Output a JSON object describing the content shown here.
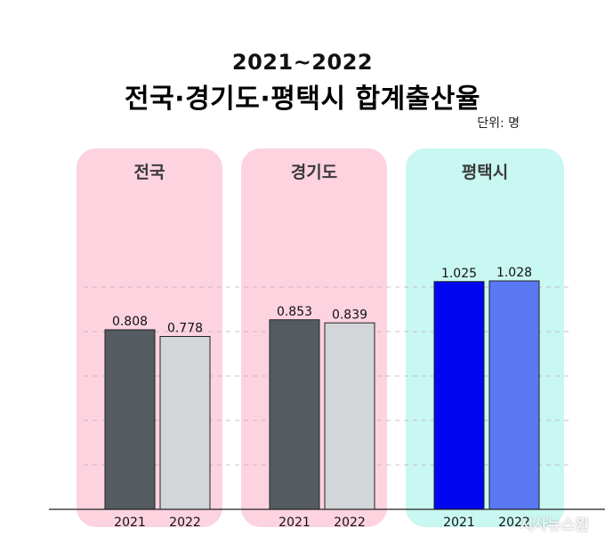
{
  "header": {
    "subtitle": "2021~2022",
    "title": "전국·경기도·평택시 합계출산율",
    "unit": "단위: 명"
  },
  "watermark": "시사뉴스원",
  "colors": {
    "panel_pink": "#fdd3e0",
    "panel_cyan": "#c9f7f1",
    "bar_2021_gray": "#545c61",
    "bar_2022_gray": "#d2d6d8",
    "bar_2021_blue": "#0007f0",
    "bar_2022_blue": "#5a78f2"
  },
  "chart_data": {
    "type": "bar",
    "title": "전국·경기도·평택시 합계출산율",
    "subtitle": "2021~2022",
    "ylim": [
      0,
      1.25
    ],
    "grid": true,
    "groups": [
      {
        "name": "전국",
        "categories": [
          "2021",
          "2022"
        ],
        "values": [
          0.808,
          0.778
        ],
        "labels": [
          "0.808",
          "0.778"
        ]
      },
      {
        "name": "경기도",
        "categories": [
          "2021",
          "2022"
        ],
        "values": [
          0.853,
          0.839
        ],
        "labels": [
          "0.853",
          "0.839"
        ]
      },
      {
        "name": "평택시",
        "categories": [
          "2021",
          "2022"
        ],
        "values": [
          1.025,
          1.028
        ],
        "labels": [
          "1.025",
          "1.028"
        ]
      }
    ]
  }
}
